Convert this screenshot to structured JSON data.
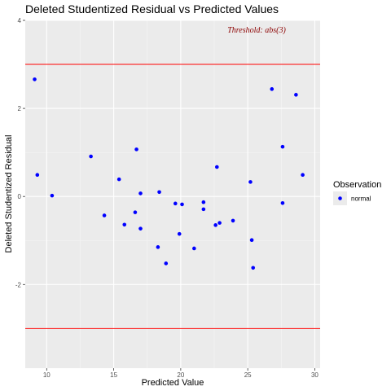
{
  "chart_data": {
    "type": "scatter",
    "title": "Deleted Studentized Residual vs Predicted Values",
    "xlabel": "Predicted Value",
    "ylabel": "Deleted Studentized Residual",
    "xlim": [
      8.4,
      30.4
    ],
    "ylim": [
      -3.9,
      4.0
    ],
    "x_ticks": [
      10,
      15,
      20,
      25,
      30
    ],
    "y_ticks": [
      -2,
      0,
      2,
      4
    ],
    "grid": true,
    "threshold": 3,
    "threshold_color": "#ff0000",
    "annotation": "Threshold: abs(3)",
    "annotation_color": "#8b0000",
    "point_color": "#0000ff",
    "panel_background": "#ebebeb",
    "legend": {
      "title": "Observation",
      "entries": [
        "normal"
      ],
      "placement": "right"
    },
    "series": [
      {
        "name": "normal",
        "points": [
          {
            "x": 9.1,
            "y": 2.66
          },
          {
            "x": 9.3,
            "y": 0.49
          },
          {
            "x": 10.4,
            "y": 0.02
          },
          {
            "x": 13.3,
            "y": 0.91
          },
          {
            "x": 14.3,
            "y": -0.43
          },
          {
            "x": 15.4,
            "y": 0.39
          },
          {
            "x": 15.8,
            "y": -0.64
          },
          {
            "x": 16.6,
            "y": -0.36
          },
          {
            "x": 16.7,
            "y": 1.07
          },
          {
            "x": 17.0,
            "y": 0.07
          },
          {
            "x": 17.0,
            "y": -0.73
          },
          {
            "x": 18.3,
            "y": -1.15
          },
          {
            "x": 18.4,
            "y": 0.1
          },
          {
            "x": 18.9,
            "y": -1.52
          },
          {
            "x": 19.6,
            "y": -0.16
          },
          {
            "x": 19.9,
            "y": -0.85
          },
          {
            "x": 20.1,
            "y": -0.18
          },
          {
            "x": 21.0,
            "y": -1.18
          },
          {
            "x": 21.7,
            "y": -0.13
          },
          {
            "x": 21.7,
            "y": -0.29
          },
          {
            "x": 22.6,
            "y": -0.65
          },
          {
            "x": 22.7,
            "y": 0.67
          },
          {
            "x": 22.9,
            "y": -0.6
          },
          {
            "x": 23.9,
            "y": -0.55
          },
          {
            "x": 25.2,
            "y": 0.33
          },
          {
            "x": 25.3,
            "y": -0.99
          },
          {
            "x": 25.4,
            "y": -1.62
          },
          {
            "x": 26.8,
            "y": 2.44
          },
          {
            "x": 27.6,
            "y": 1.13
          },
          {
            "x": 27.6,
            "y": -0.15
          },
          {
            "x": 28.6,
            "y": 2.31
          },
          {
            "x": 29.1,
            "y": 0.49
          }
        ]
      }
    ]
  }
}
